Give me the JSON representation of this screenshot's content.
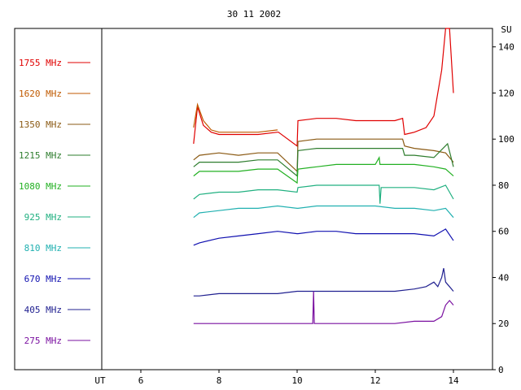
{
  "chart_data": {
    "type": "line",
    "title": "30 11 2002",
    "xlabel": "UT",
    "ylabel": "SU",
    "x_ticks": [
      6,
      8,
      10,
      12,
      14
    ],
    "y_ticks": [
      0,
      20,
      40,
      60,
      80,
      100,
      120,
      140
    ],
    "xlim": [
      5.0,
      15.0
    ],
    "ylim": [
      0,
      148
    ],
    "grid": false,
    "legend_position": "left",
    "series": [
      {
        "name": "1755 MHz",
        "color": "#e00000",
        "points": [
          [
            7.35,
            98
          ],
          [
            7.45,
            114
          ],
          [
            7.6,
            106
          ],
          [
            7.8,
            103
          ],
          [
            8.0,
            102
          ],
          [
            8.5,
            102
          ],
          [
            9.0,
            102
          ],
          [
            9.5,
            103
          ],
          [
            9.52,
            103
          ],
          [
            10.0,
            97
          ],
          [
            10.02,
            108
          ],
          [
            10.5,
            109
          ],
          [
            11.0,
            109
          ],
          [
            11.5,
            108
          ],
          [
            12.0,
            108
          ],
          [
            12.5,
            108
          ],
          [
            12.7,
            109
          ],
          [
            12.75,
            102
          ],
          [
            13.0,
            103
          ],
          [
            13.3,
            105
          ],
          [
            13.5,
            110
          ],
          [
            13.7,
            130
          ],
          [
            13.8,
            150
          ],
          [
            13.9,
            150
          ],
          [
            14.0,
            120
          ]
        ]
      },
      {
        "name": "1620 MHz",
        "color": "#c05a00",
        "points": [
          [
            7.35,
            105
          ],
          [
            7.45,
            115
          ],
          [
            7.6,
            108
          ],
          [
            7.8,
            104
          ],
          [
            8.0,
            103
          ],
          [
            8.5,
            103
          ],
          [
            9.0,
            103
          ],
          [
            9.5,
            104
          ]
        ]
      },
      {
        "name": "1350 MHz",
        "color": "#8b5a14",
        "points": [
          [
            7.35,
            91
          ],
          [
            7.5,
            93
          ],
          [
            8.0,
            94
          ],
          [
            8.5,
            93
          ],
          [
            9.0,
            94
          ],
          [
            9.5,
            94
          ],
          [
            10.0,
            86
          ],
          [
            10.02,
            99
          ],
          [
            10.5,
            100
          ],
          [
            11.0,
            100
          ],
          [
            11.5,
            100
          ],
          [
            12.0,
            100
          ],
          [
            12.5,
            100
          ],
          [
            12.7,
            100
          ],
          [
            12.75,
            97
          ],
          [
            13.0,
            96
          ],
          [
            13.5,
            95
          ],
          [
            13.8,
            94
          ],
          [
            14.0,
            90
          ]
        ]
      },
      {
        "name": "1215 MHz",
        "color": "#2e7d2e",
        "points": [
          [
            7.35,
            88
          ],
          [
            7.5,
            90
          ],
          [
            8.0,
            90
          ],
          [
            8.5,
            90
          ],
          [
            9.0,
            91
          ],
          [
            9.5,
            91
          ],
          [
            10.0,
            84
          ],
          [
            10.02,
            95
          ],
          [
            10.5,
            96
          ],
          [
            11.0,
            96
          ],
          [
            11.5,
            96
          ],
          [
            12.0,
            96
          ],
          [
            12.5,
            96
          ],
          [
            12.7,
            96
          ],
          [
            12.75,
            93
          ],
          [
            13.0,
            93
          ],
          [
            13.5,
            92
          ],
          [
            13.85,
            98
          ],
          [
            14.0,
            88
          ]
        ]
      },
      {
        "name": "1080 MHz",
        "color": "#22b022",
        "points": [
          [
            7.35,
            84
          ],
          [
            7.5,
            86
          ],
          [
            8.0,
            86
          ],
          [
            8.5,
            86
          ],
          [
            9.0,
            87
          ],
          [
            9.5,
            87
          ],
          [
            10.0,
            81
          ],
          [
            10.02,
            87
          ],
          [
            10.5,
            88
          ],
          [
            11.0,
            89
          ],
          [
            11.5,
            89
          ],
          [
            12.0,
            89
          ],
          [
            12.1,
            92
          ],
          [
            12.12,
            89
          ],
          [
            12.5,
            89
          ],
          [
            12.7,
            89
          ],
          [
            12.75,
            89
          ],
          [
            13.0,
            89
          ],
          [
            13.5,
            88
          ],
          [
            13.8,
            87
          ],
          [
            14.0,
            84
          ]
        ]
      },
      {
        "name": "925 MHz",
        "color": "#20b080",
        "points": [
          [
            7.35,
            74
          ],
          [
            7.5,
            76
          ],
          [
            8.0,
            77
          ],
          [
            8.5,
            77
          ],
          [
            9.0,
            78
          ],
          [
            9.5,
            78
          ],
          [
            10.0,
            77
          ],
          [
            10.02,
            79
          ],
          [
            10.5,
            80
          ],
          [
            11.0,
            80
          ],
          [
            11.5,
            80
          ],
          [
            12.0,
            80
          ],
          [
            12.1,
            80
          ],
          [
            12.12,
            72
          ],
          [
            12.15,
            79
          ],
          [
            12.5,
            79
          ],
          [
            13.0,
            79
          ],
          [
            13.5,
            78
          ],
          [
            13.8,
            80
          ],
          [
            14.0,
            74
          ]
        ]
      },
      {
        "name": "810 MHz",
        "color": "#20b0b0",
        "points": [
          [
            7.35,
            66
          ],
          [
            7.5,
            68
          ],
          [
            8.0,
            69
          ],
          [
            8.5,
            70
          ],
          [
            9.0,
            70
          ],
          [
            9.5,
            71
          ],
          [
            10.0,
            70
          ],
          [
            10.02,
            70
          ],
          [
            10.5,
            71
          ],
          [
            11.0,
            71
          ],
          [
            11.5,
            71
          ],
          [
            12.0,
            71
          ],
          [
            12.5,
            70
          ],
          [
            13.0,
            70
          ],
          [
            13.5,
            69
          ],
          [
            13.8,
            70
          ],
          [
            14.0,
            66
          ]
        ]
      },
      {
        "name": "670 MHz",
        "color": "#1010b0",
        "points": [
          [
            7.35,
            54
          ],
          [
            7.5,
            55
          ],
          [
            8.0,
            57
          ],
          [
            8.5,
            58
          ],
          [
            9.0,
            59
          ],
          [
            9.5,
            60
          ],
          [
            10.0,
            59
          ],
          [
            10.02,
            59
          ],
          [
            10.5,
            60
          ],
          [
            11.0,
            60
          ],
          [
            11.5,
            59
          ],
          [
            12.0,
            59
          ],
          [
            12.5,
            59
          ],
          [
            13.0,
            59
          ],
          [
            13.5,
            58
          ],
          [
            13.8,
            61
          ],
          [
            14.0,
            56
          ]
        ]
      },
      {
        "name": "405 MHz",
        "color": "#202090",
        "points": [
          [
            7.35,
            32
          ],
          [
            7.5,
            32
          ],
          [
            8.0,
            33
          ],
          [
            8.5,
            33
          ],
          [
            9.0,
            33
          ],
          [
            9.5,
            33
          ],
          [
            10.0,
            34
          ],
          [
            10.5,
            34
          ],
          [
            11.0,
            34
          ],
          [
            11.5,
            34
          ],
          [
            12.0,
            34
          ],
          [
            12.5,
            34
          ],
          [
            13.0,
            35
          ],
          [
            13.3,
            36
          ],
          [
            13.5,
            38
          ],
          [
            13.6,
            36
          ],
          [
            13.7,
            40
          ],
          [
            13.75,
            44
          ],
          [
            13.8,
            38
          ],
          [
            13.9,
            36
          ],
          [
            14.0,
            34
          ]
        ]
      },
      {
        "name": "275 MHz",
        "color": "#7a10a0",
        "points": [
          [
            7.35,
            20
          ],
          [
            7.5,
            20
          ],
          [
            8.0,
            20
          ],
          [
            8.5,
            20
          ],
          [
            9.0,
            20
          ],
          [
            9.5,
            20
          ],
          [
            10.0,
            20
          ],
          [
            10.4,
            20
          ],
          [
            10.42,
            34
          ],
          [
            10.44,
            20
          ],
          [
            10.5,
            20
          ],
          [
            11.0,
            20
          ],
          [
            11.5,
            20
          ],
          [
            12.0,
            20
          ],
          [
            12.5,
            20
          ],
          [
            13.0,
            21
          ],
          [
            13.5,
            21
          ],
          [
            13.7,
            23
          ],
          [
            13.8,
            28
          ],
          [
            13.9,
            30
          ],
          [
            14.0,
            28
          ]
        ]
      }
    ]
  }
}
